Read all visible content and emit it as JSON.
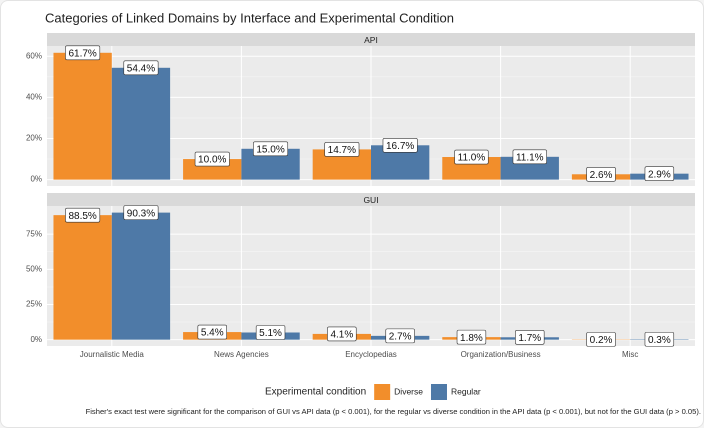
{
  "title": "Categories of Linked Domains by Interface and Experimental Condition",
  "legend_title": "Experimental condition",
  "caption": "Fisher's exact test were significant for the comparison of GUI vs API data (p < 0.001), for the regular vs diverse condition in the API data (p < 0.001), but not for the GUI data (p > 0.05).",
  "chart_data": [
    {
      "type": "bar",
      "title": "API",
      "categories": [
        "Journalistic Media",
        "News Agencies",
        "Encyclopedias",
        "Organization/Business",
        "Misc"
      ],
      "series": [
        {
          "name": "Diverse",
          "color": "#f28e2b",
          "values": [
            61.7,
            10.0,
            14.7,
            11.0,
            2.6
          ],
          "value_labels": [
            "61.7%",
            "10.0%",
            "14.7%",
            "11.0%",
            "2.6%"
          ]
        },
        {
          "name": "Regular",
          "color": "#4e79a7",
          "values": [
            54.4,
            15.0,
            16.7,
            11.1,
            2.9
          ],
          "value_labels": [
            "54.4%",
            "15.0%",
            "16.7%",
            "11.1%",
            "2.9%"
          ]
        }
      ],
      "ylim": [
        -3.1,
        65
      ],
      "yticks": [
        {
          "value": 0,
          "label": "0%"
        },
        {
          "value": 20,
          "label": "20%"
        },
        {
          "value": 40,
          "label": "40%"
        },
        {
          "value": 60,
          "label": "60%"
        }
      ],
      "grid": true
    },
    {
      "type": "bar",
      "title": "GUI",
      "categories": [
        "Journalistic Media",
        "News Agencies",
        "Encyclopedias",
        "Organization/Business",
        "Misc"
      ],
      "series": [
        {
          "color": "#f28e2b",
          "values": [
            88.5,
            5.4,
            4.1,
            1.8,
            0.2
          ],
          "value_labels": [
            "88.5%",
            "5.4%",
            "4.1%",
            "1.8%",
            "0.2%"
          ]
        },
        {
          "color": "#4e79a7",
          "values": [
            90.3,
            5.1,
            2.7,
            1.7,
            0.3
          ],
          "value_labels": [
            "90.3%",
            "5.1%",
            "2.7%",
            "1.7%",
            "0.3%"
          ]
        }
      ],
      "ylim": [
        -4.5,
        95
      ],
      "yticks": [
        {
          "value": 0,
          "label": "0%"
        },
        {
          "value": 25,
          "label": "25%"
        },
        {
          "value": 50,
          "label": "50%"
        },
        {
          "value": 75,
          "label": "75%"
        }
      ],
      "grid": true
    }
  ]
}
